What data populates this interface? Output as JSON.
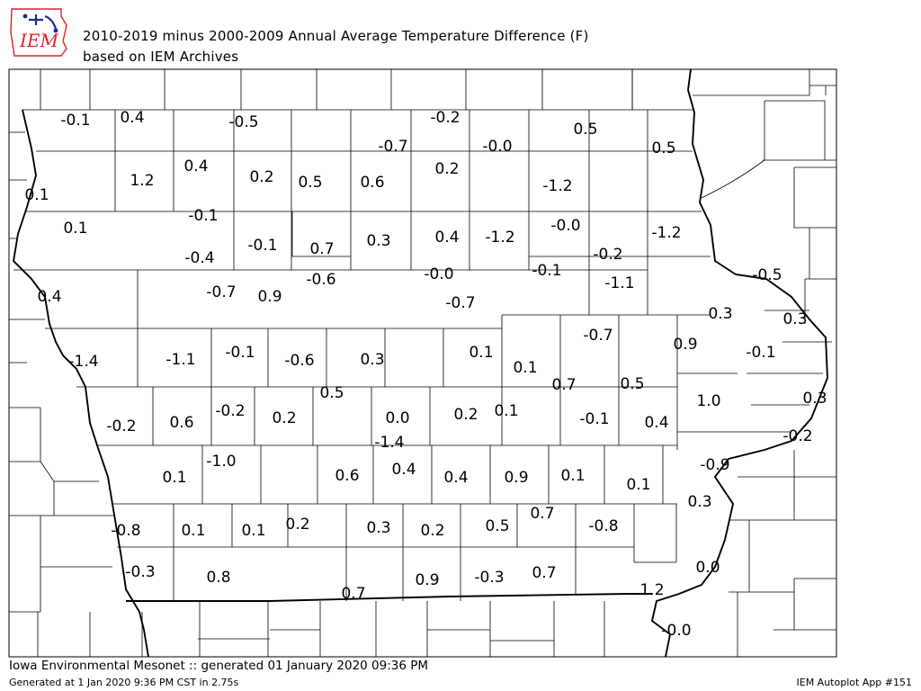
{
  "header": {
    "logo_text": "IEM",
    "title_line1": "2010-2019 minus 2000-2009 Annual Average Temperature Difference (F)",
    "title_line2": "based on IEM Archives"
  },
  "footer": {
    "left": "Iowa Environmental Mesonet :: generated 01 January 2020 09:36 PM",
    "generated": "Generated at 1 Jan 2020 9:36 PM CST in 2.75s",
    "app": "IEM Autoplot App #151"
  },
  "colors": {
    "logo_red": "#d9232a",
    "logo_blue": "#1b2a8f",
    "ink": "#000000"
  },
  "values": [
    {
      "id": "v1",
      "text": "-0.1"
    },
    {
      "id": "v2",
      "text": "0.4"
    },
    {
      "id": "v3",
      "text": "-0.5"
    },
    {
      "id": "v4",
      "text": "-0.2"
    },
    {
      "id": "v5",
      "text": "-0.7"
    },
    {
      "id": "v6",
      "text": "-0.0"
    },
    {
      "id": "v7",
      "text": "0.5"
    },
    {
      "id": "v8",
      "text": "0.5"
    },
    {
      "id": "v9",
      "text": "1.2"
    },
    {
      "id": "v10",
      "text": "0.4"
    },
    {
      "id": "v11",
      "text": "0.2"
    },
    {
      "id": "v12",
      "text": "0.5"
    },
    {
      "id": "v13",
      "text": "0.6"
    },
    {
      "id": "v14",
      "text": "0.2"
    },
    {
      "id": "v15",
      "text": "-1.2"
    },
    {
      "id": "v16",
      "text": "0.1"
    },
    {
      "id": "v17",
      "text": "0.1"
    },
    {
      "id": "v18",
      "text": "-0.1"
    },
    {
      "id": "v19",
      "text": "-0.0"
    },
    {
      "id": "v20",
      "text": "-1.2"
    },
    {
      "id": "v21",
      "text": "-0.1"
    },
    {
      "id": "v22",
      "text": "0.7"
    },
    {
      "id": "v23",
      "text": "0.3"
    },
    {
      "id": "v24",
      "text": "0.4"
    },
    {
      "id": "v25",
      "text": "-1.2"
    },
    {
      "id": "v26",
      "text": "-0.4"
    },
    {
      "id": "v27",
      "text": "-0.2"
    },
    {
      "id": "v28",
      "text": "-0.6"
    },
    {
      "id": "v29",
      "text": "-0.0"
    },
    {
      "id": "v30",
      "text": "-0.1"
    },
    {
      "id": "v31",
      "text": "-1.1"
    },
    {
      "id": "v32",
      "text": "-0.5"
    },
    {
      "id": "v33",
      "text": "0.4"
    },
    {
      "id": "v34",
      "text": "-0.7"
    },
    {
      "id": "v35",
      "text": "0.9"
    },
    {
      "id": "v36",
      "text": "-0.7"
    },
    {
      "id": "v37",
      "text": "0.3"
    },
    {
      "id": "v38",
      "text": "0.3"
    },
    {
      "id": "v39",
      "text": "-0.7"
    },
    {
      "id": "v40",
      "text": "0.9"
    },
    {
      "id": "v41",
      "text": "-1.4"
    },
    {
      "id": "v42",
      "text": "-1.1"
    },
    {
      "id": "v43",
      "text": "-0.1"
    },
    {
      "id": "v44",
      "text": "-0.6"
    },
    {
      "id": "v45",
      "text": "0.3"
    },
    {
      "id": "v46",
      "text": "0.1"
    },
    {
      "id": "v47",
      "text": "0.1"
    },
    {
      "id": "v48",
      "text": "-0.1"
    },
    {
      "id": "v49",
      "text": "0.7"
    },
    {
      "id": "v50",
      "text": "0.5"
    },
    {
      "id": "v51",
      "text": "0.5"
    },
    {
      "id": "v52",
      "text": "1.0"
    },
    {
      "id": "v53",
      "text": "0.3"
    },
    {
      "id": "v54",
      "text": "-0.2"
    },
    {
      "id": "v55",
      "text": "0.6"
    },
    {
      "id": "v56",
      "text": "-0.2"
    },
    {
      "id": "v57",
      "text": "0.2"
    },
    {
      "id": "v58",
      "text": "0.0"
    },
    {
      "id": "v59",
      "text": "0.2"
    },
    {
      "id": "v60",
      "text": "0.1"
    },
    {
      "id": "v61",
      "text": "-0.1"
    },
    {
      "id": "v62",
      "text": "0.4"
    },
    {
      "id": "v63",
      "text": "-0.2"
    },
    {
      "id": "v64",
      "text": "-1.4"
    },
    {
      "id": "v65",
      "text": "-1.0"
    },
    {
      "id": "v66",
      "text": "-0.9"
    },
    {
      "id": "v67",
      "text": "0.1"
    },
    {
      "id": "v68",
      "text": "0.6"
    },
    {
      "id": "v69",
      "text": "0.4"
    },
    {
      "id": "v70",
      "text": "0.4"
    },
    {
      "id": "v71",
      "text": "0.9"
    },
    {
      "id": "v72",
      "text": "0.1"
    },
    {
      "id": "v73",
      "text": "0.1"
    },
    {
      "id": "v74",
      "text": "0.3"
    },
    {
      "id": "v75",
      "text": "0.7"
    },
    {
      "id": "v76",
      "text": "-0.8"
    },
    {
      "id": "v77",
      "text": "0.1"
    },
    {
      "id": "v78",
      "text": "0.1"
    },
    {
      "id": "v79",
      "text": "0.2"
    },
    {
      "id": "v80",
      "text": "0.3"
    },
    {
      "id": "v81",
      "text": "0.2"
    },
    {
      "id": "v82",
      "text": "0.5"
    },
    {
      "id": "v83",
      "text": "-0.8"
    },
    {
      "id": "v84",
      "text": "-0.3"
    },
    {
      "id": "v85",
      "text": "0.8"
    },
    {
      "id": "v86",
      "text": "0.9"
    },
    {
      "id": "v87",
      "text": "-0.3"
    },
    {
      "id": "v88",
      "text": "0.7"
    },
    {
      "id": "v89",
      "text": "0.0"
    },
    {
      "id": "v90",
      "text": "0.7"
    },
    {
      "id": "v91",
      "text": "1.2"
    },
    {
      "id": "v92",
      "text": "-0.0"
    }
  ]
}
